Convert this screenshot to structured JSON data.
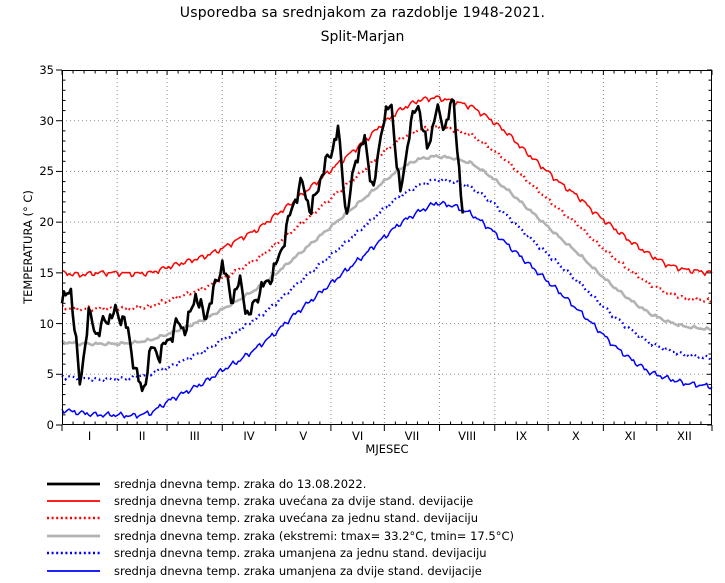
{
  "chart_data": {
    "type": "line",
    "title": "Usporedba sa srednjakom za razdoblje 1948-2021.",
    "subtitle": "Split-Marjan",
    "xlabel": "MJESEC",
    "ylabel": "TEMPERATURA (° C)",
    "ylim": [
      0,
      35
    ],
    "y_ticks": [
      0,
      5,
      10,
      15,
      20,
      25,
      30,
      35
    ],
    "x_tick_labels": [
      "I",
      "II",
      "III",
      "IV",
      "V",
      "VI",
      "VII",
      "VIII",
      "IX",
      "X",
      "XI",
      "XII"
    ],
    "month_boundaries": [
      0,
      31,
      59,
      90,
      120,
      151,
      181,
      212,
      243,
      273,
      304,
      334,
      365
    ],
    "grid": "dotted",
    "legend_position": "bottom",
    "series": [
      {
        "id": "current-2022",
        "name": "srednja dnevna temp. zraka do 13.08.2022.",
        "color": "#000000",
        "style": "solid",
        "width": 2.6,
        "jitter": 1.1,
        "day_step": 5,
        "day_end": 225,
        "values": [
          12.0,
          13.5,
          4.0,
          10.8,
          9.0,
          10.5,
          11.0,
          10.5,
          6.5,
          3.0,
          7.5,
          7.0,
          8.5,
          10.0,
          9.5,
          13.0,
          10.5,
          13.0,
          16.0,
          12.5,
          14.0,
          10.5,
          13.0,
          14.0,
          15.5,
          18.5,
          22.0,
          23.8,
          21.0,
          24.3,
          26.5,
          29.0,
          20.5,
          26.5,
          28.0,
          23.0,
          30.0,
          31.5,
          22.5,
          29.0,
          31.8,
          27.0,
          31.0,
          29.5,
          32.0,
          20.5
        ]
      },
      {
        "id": "mean-plus-2sd",
        "name": "srednja dnevna temp. zraka uvećana za dvije stand. devijacije",
        "color": "#ff0000",
        "style": "solid",
        "width": 1.5,
        "jitter": 0.35,
        "day_step": 10,
        "day_end": 365,
        "values": [
          15.0,
          14.8,
          15.0,
          15.0,
          14.9,
          15.0,
          15.6,
          16.1,
          16.6,
          17.4,
          18.4,
          19.3,
          20.7,
          22.0,
          23.5,
          25.0,
          26.5,
          28.0,
          29.7,
          31.1,
          32.0,
          32.3,
          31.9,
          31.4,
          30.2,
          28.8,
          27.0,
          25.4,
          23.8,
          22.5,
          20.8,
          19.4,
          18.0,
          16.8,
          15.8,
          15.3,
          15.1
        ]
      },
      {
        "id": "mean-plus-1sd",
        "name": "srednja dnevna temp. zraka uvećana za jednu stand. devijaciju",
        "color": "#ff0000",
        "style": "dotted",
        "width": 2.3,
        "jitter": 0.25,
        "day_step": 10,
        "day_end": 365,
        "values": [
          11.6,
          11.4,
          11.5,
          11.5,
          11.5,
          11.7,
          12.3,
          12.9,
          13.5,
          14.4,
          15.4,
          16.4,
          17.8,
          19.2,
          20.7,
          22.2,
          23.7,
          25.2,
          26.8,
          28.2,
          29.1,
          29.4,
          29.1,
          28.6,
          27.4,
          26.0,
          24.3,
          22.7,
          21.1,
          19.7,
          18.0,
          16.5,
          15.1,
          13.9,
          13.0,
          12.5,
          12.3
        ]
      },
      {
        "id": "mean",
        "name": "srednja dnevna temp. zraka (ekstremi: tmax= 33.2°C, tmin= 17.5°C)",
        "color": "#b3b3b3",
        "style": "solid",
        "width": 2.6,
        "jitter": 0.18,
        "day_step": 10,
        "day_end": 365,
        "values": [
          8.2,
          8.0,
          8.0,
          8.0,
          8.1,
          8.4,
          9.0,
          9.7,
          10.4,
          11.4,
          12.4,
          13.5,
          14.9,
          16.4,
          17.9,
          19.4,
          20.9,
          22.4,
          23.9,
          25.3,
          26.2,
          26.5,
          26.3,
          25.8,
          24.6,
          23.2,
          21.6,
          20.0,
          18.4,
          16.9,
          15.2,
          13.6,
          12.2,
          11.0,
          10.2,
          9.7,
          9.5
        ]
      },
      {
        "id": "mean-minus-1sd",
        "name": "srednja dnevna temp. zraka umanjena za jednu stand. devijaciju",
        "color": "#0000ff",
        "style": "dotted",
        "width": 2.3,
        "jitter": 0.25,
        "day_step": 10,
        "day_end": 365,
        "values": [
          4.8,
          4.6,
          4.5,
          4.5,
          4.7,
          5.1,
          5.7,
          6.5,
          7.3,
          8.4,
          9.4,
          10.6,
          12.0,
          13.6,
          15.1,
          16.6,
          18.1,
          19.6,
          21.2,
          22.6,
          23.6,
          24.2,
          24.0,
          23.4,
          22.2,
          20.6,
          18.9,
          17.3,
          15.7,
          14.1,
          12.4,
          10.7,
          9.3,
          8.1,
          7.4,
          6.9,
          6.7
        ]
      },
      {
        "id": "mean-minus-2sd",
        "name": "srednja dnevna temp. zraka umanjena za dvije stand. devijacije",
        "color": "#0000ff",
        "style": "solid",
        "width": 1.5,
        "jitter": 0.35,
        "day_step": 10,
        "day_end": 365,
        "values": [
          1.5,
          1.2,
          1.0,
          1.0,
          0.9,
          1.2,
          2.4,
          3.3,
          4.2,
          5.4,
          6.4,
          7.7,
          9.1,
          10.8,
          12.3,
          13.8,
          15.3,
          16.8,
          18.4,
          19.9,
          21.0,
          21.9,
          21.6,
          20.8,
          19.4,
          17.8,
          16.2,
          14.6,
          13.0,
          11.3,
          9.6,
          7.8,
          6.4,
          5.2,
          4.6,
          4.1,
          3.9
        ]
      }
    ]
  }
}
